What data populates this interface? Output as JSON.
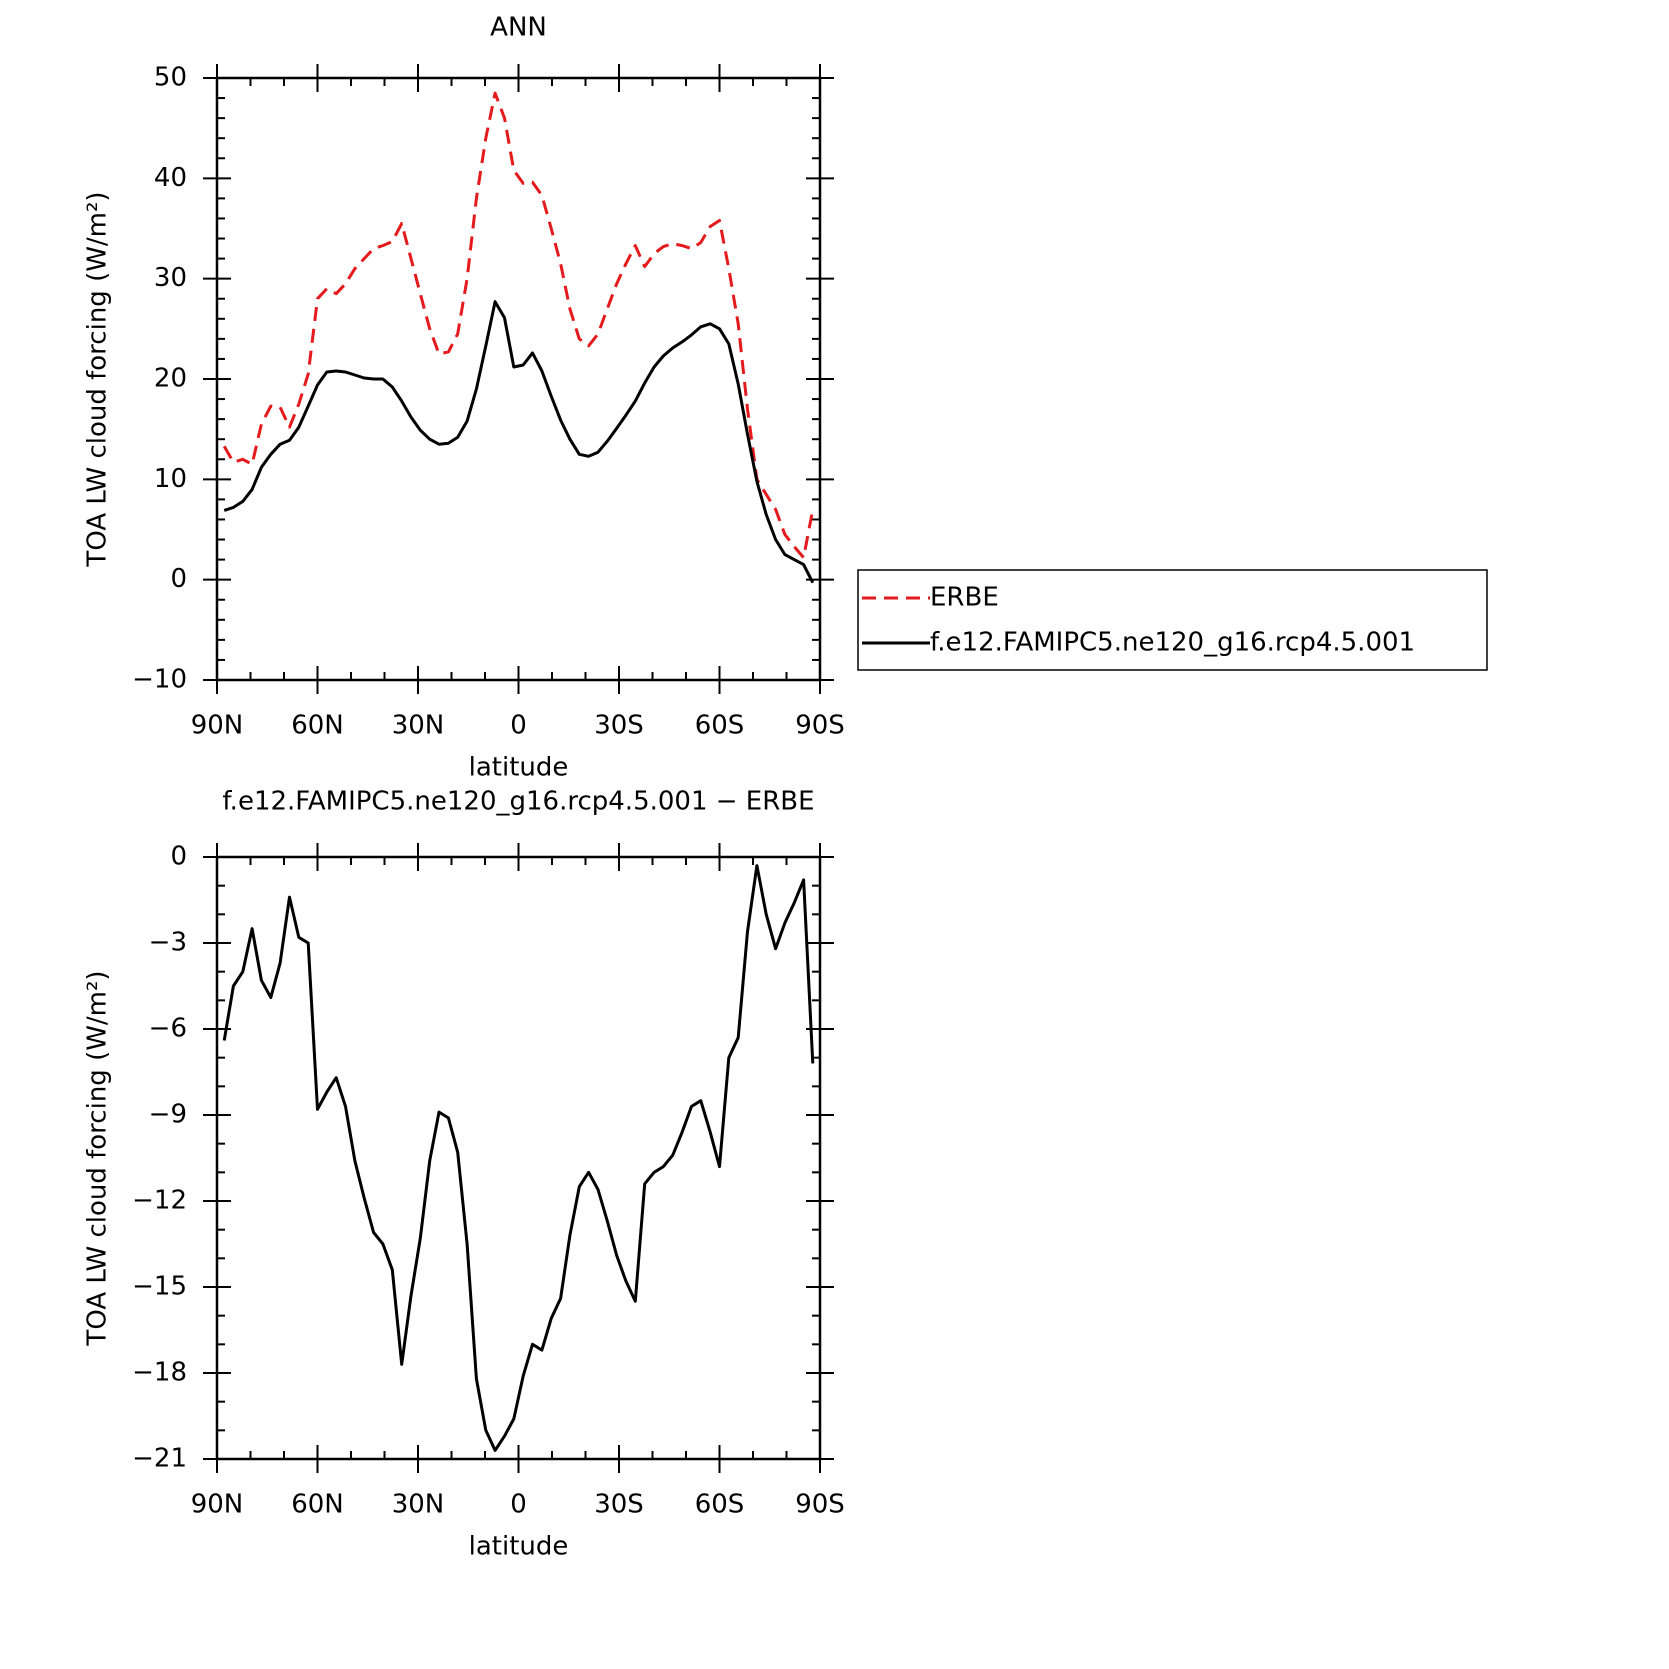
{
  "chart_data": [
    {
      "type": "line",
      "title": "ANN",
      "xlabel": "latitude",
      "ylabel": "TOA LW cloud forcing (W/m²)",
      "x": [
        87.86,
        85.1,
        82.31,
        79.53,
        76.74,
        73.95,
        71.16,
        68.37,
        65.58,
        62.79,
        60.0,
        57.21,
        54.42,
        51.63,
        48.84,
        46.05,
        43.26,
        40.47,
        37.67,
        34.88,
        32.09,
        29.3,
        26.51,
        23.72,
        20.93,
        18.14,
        15.35,
        12.56,
        9.77,
        6.98,
        4.19,
        1.4,
        -1.4,
        -4.19,
        -6.98,
        -9.77,
        -12.56,
        -15.35,
        -18.14,
        -20.93,
        -23.72,
        -26.51,
        -29.3,
        -32.09,
        -34.88,
        -37.67,
        -40.47,
        -43.26,
        -46.05,
        -48.84,
        -51.63,
        -54.42,
        -57.21,
        -60.0,
        -62.79,
        -65.58,
        -68.37,
        -71.16,
        -73.95,
        -76.74,
        -79.53,
        -82.31,
        -85.1,
        -87.86
      ],
      "xlim": [
        90,
        -90
      ],
      "xticks": [
        {
          "value": 90,
          "label": "90N"
        },
        {
          "value": 60,
          "label": "60N"
        },
        {
          "value": 30,
          "label": "30N"
        },
        0,
        {
          "value": -30,
          "label": "30S"
        },
        {
          "value": -60,
          "label": "60S"
        },
        {
          "value": -90,
          "label": "90S"
        }
      ],
      "ylim": [
        -10,
        50
      ],
      "yticks": [
        {
          "value": -10,
          "label": "−10"
        },
        0,
        10,
        20,
        30,
        40,
        50
      ],
      "legend": "right",
      "series": [
        {
          "name": "ERBE",
          "color": "#e41a1c",
          "dashed": true,
          "values": [
            13.3,
            11.7,
            12.0,
            11.5,
            15.5,
            17.3,
            17.2,
            15.2,
            17.5,
            20.5,
            28.0,
            29.0,
            28.5,
            29.5,
            31.0,
            32.0,
            33.0,
            33.3,
            33.7,
            35.5,
            32.0,
            28.5,
            25.0,
            22.5,
            22.7,
            24.5,
            30.0,
            38.0,
            44.0,
            48.5,
            46.0,
            40.8,
            39.5,
            39.6,
            38.3,
            35.0,
            31.5,
            27.0,
            24.0,
            23.3,
            24.5,
            27.0,
            29.5,
            31.5,
            33.3,
            31.2,
            32.5,
            33.2,
            33.5,
            33.3,
            33.0,
            33.6,
            35.2,
            35.8,
            31.0,
            25.5,
            17.0,
            10.0,
            8.5,
            7.0,
            4.5,
            3.3,
            2.2,
            7.0
          ]
        },
        {
          "name": "f.e12.FAMIPC5.ne120_g16.rcp4.5.001",
          "color": "#000000",
          "dashed": false,
          "values": [
            6.9,
            7.2,
            7.8,
            9.0,
            11.2,
            12.5,
            13.5,
            13.9,
            15.2,
            17.3,
            19.4,
            20.7,
            20.8,
            20.7,
            20.4,
            20.1,
            20.0,
            20.0,
            19.2,
            17.8,
            16.2,
            14.9,
            14.0,
            13.5,
            13.6,
            14.2,
            15.8,
            19.0,
            23.3,
            27.7,
            26.1,
            21.2,
            21.4,
            22.6,
            20.8,
            18.3,
            15.9,
            14.0,
            12.5,
            12.3,
            12.7,
            13.8,
            15.1,
            16.4,
            17.8,
            19.6,
            21.2,
            22.3,
            23.1,
            23.7,
            24.4,
            25.2,
            25.5,
            25.0,
            23.5,
            19.5,
            14.5,
            9.8,
            6.5,
            4.0,
            2.5,
            2.0,
            1.5,
            -0.3
          ]
        }
      ]
    },
    {
      "type": "line",
      "title": "f.e12.FAMIPC5.ne120_g16.rcp4.5.001 − ERBE",
      "xlabel": "latitude",
      "ylabel": "TOA LW cloud forcing (W/m²)",
      "x": [
        87.86,
        85.1,
        82.31,
        79.53,
        76.74,
        73.95,
        71.16,
        68.37,
        65.58,
        62.79,
        60.0,
        57.21,
        54.42,
        51.63,
        48.84,
        46.05,
        43.26,
        40.47,
        37.67,
        34.88,
        32.09,
        29.3,
        26.51,
        23.72,
        20.93,
        18.14,
        15.35,
        12.56,
        9.77,
        6.98,
        4.19,
        1.4,
        -1.4,
        -4.19,
        -6.98,
        -9.77,
        -12.56,
        -15.35,
        -18.14,
        -20.93,
        -23.72,
        -26.51,
        -29.3,
        -32.09,
        -34.88,
        -37.67,
        -40.47,
        -43.26,
        -46.05,
        -48.84,
        -51.63,
        -54.42,
        -57.21,
        -60.0,
        -62.79,
        -65.58,
        -68.37,
        -71.16,
        -73.95,
        -76.74,
        -79.53,
        -82.31,
        -85.1,
        -87.86
      ],
      "xlim": [
        90,
        -90
      ],
      "xticks": [
        {
          "value": 90,
          "label": "90N"
        },
        {
          "value": 60,
          "label": "60N"
        },
        {
          "value": 30,
          "label": "30N"
        },
        0,
        {
          "value": -30,
          "label": "30S"
        },
        {
          "value": -60,
          "label": "60S"
        },
        {
          "value": -90,
          "label": "90S"
        }
      ],
      "ylim": [
        -21,
        0
      ],
      "yticks": [
        {
          "value": -21,
          "label": "−21"
        },
        {
          "value": -18,
          "label": "−18"
        },
        {
          "value": -15,
          "label": "−15"
        },
        {
          "value": -12,
          "label": "−12"
        },
        {
          "value": -9,
          "label": "−9"
        },
        {
          "value": -6,
          "label": "−6"
        },
        {
          "value": -3,
          "label": "−3"
        },
        0
      ],
      "color": "#000000",
      "values": [
        -6.4,
        -4.5,
        -4.0,
        -2.5,
        -4.3,
        -4.9,
        -3.7,
        -1.4,
        -2.8,
        -3.0,
        -8.8,
        -8.2,
        -7.7,
        -8.7,
        -10.6,
        -11.9,
        -13.1,
        -13.5,
        -14.4,
        -17.7,
        -15.3,
        -13.3,
        -10.6,
        -8.9,
        -9.1,
        -10.3,
        -13.5,
        -18.2,
        -20.0,
        -20.7,
        -20.2,
        -19.6,
        -18.1,
        -17.0,
        -17.2,
        -16.1,
        -15.4,
        -13.2,
        -11.5,
        -11.0,
        -11.6,
        -12.7,
        -13.9,
        -14.8,
        -15.5,
        -11.4,
        -11.0,
        -10.8,
        -10.4,
        -9.6,
        -8.7,
        -8.5,
        -9.6,
        -10.8,
        -7.0,
        -6.3,
        -2.6,
        -0.3,
        -2.0,
        -3.2,
        -2.3,
        -1.6,
        -0.8,
        -7.2
      ]
    }
  ]
}
